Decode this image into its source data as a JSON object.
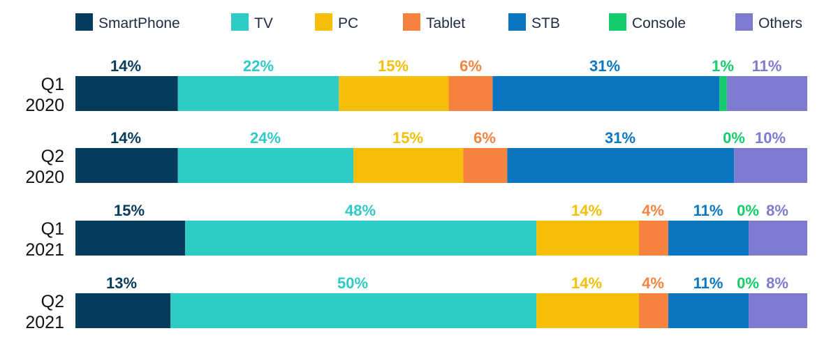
{
  "chart_data": {
    "type": "bar",
    "orientation": "horizontal",
    "stacked": true,
    "normalized": true,
    "legend": "top",
    "grid": false,
    "categories": [
      "Q1\n2020",
      "Q2\n2020",
      "Q1\n2021",
      "Q2\n2021"
    ],
    "series": [
      {
        "name": "SmartPhone",
        "color": "#073b5c",
        "values": [
          14,
          14,
          15,
          13
        ]
      },
      {
        "name": "TV",
        "color": "#2ecac5",
        "values": [
          22,
          24,
          48,
          50
        ]
      },
      {
        "name": "PC",
        "color": "#f5be08",
        "values": [
          15,
          15,
          14,
          14
        ]
      },
      {
        "name": "Tablet",
        "color": "#f6843f",
        "values": [
          6,
          6,
          4,
          4
        ]
      },
      {
        "name": "STB",
        "color": "#0a76c1",
        "values": [
          31,
          31,
          11,
          11
        ]
      },
      {
        "name": "Console",
        "color": "#15cc6a",
        "values": [
          1,
          0,
          0,
          0
        ]
      },
      {
        "name": "Others",
        "color": "#7d7bcf",
        "values": [
          11,
          10,
          8,
          8
        ]
      }
    ],
    "label_suffix": "%"
  }
}
